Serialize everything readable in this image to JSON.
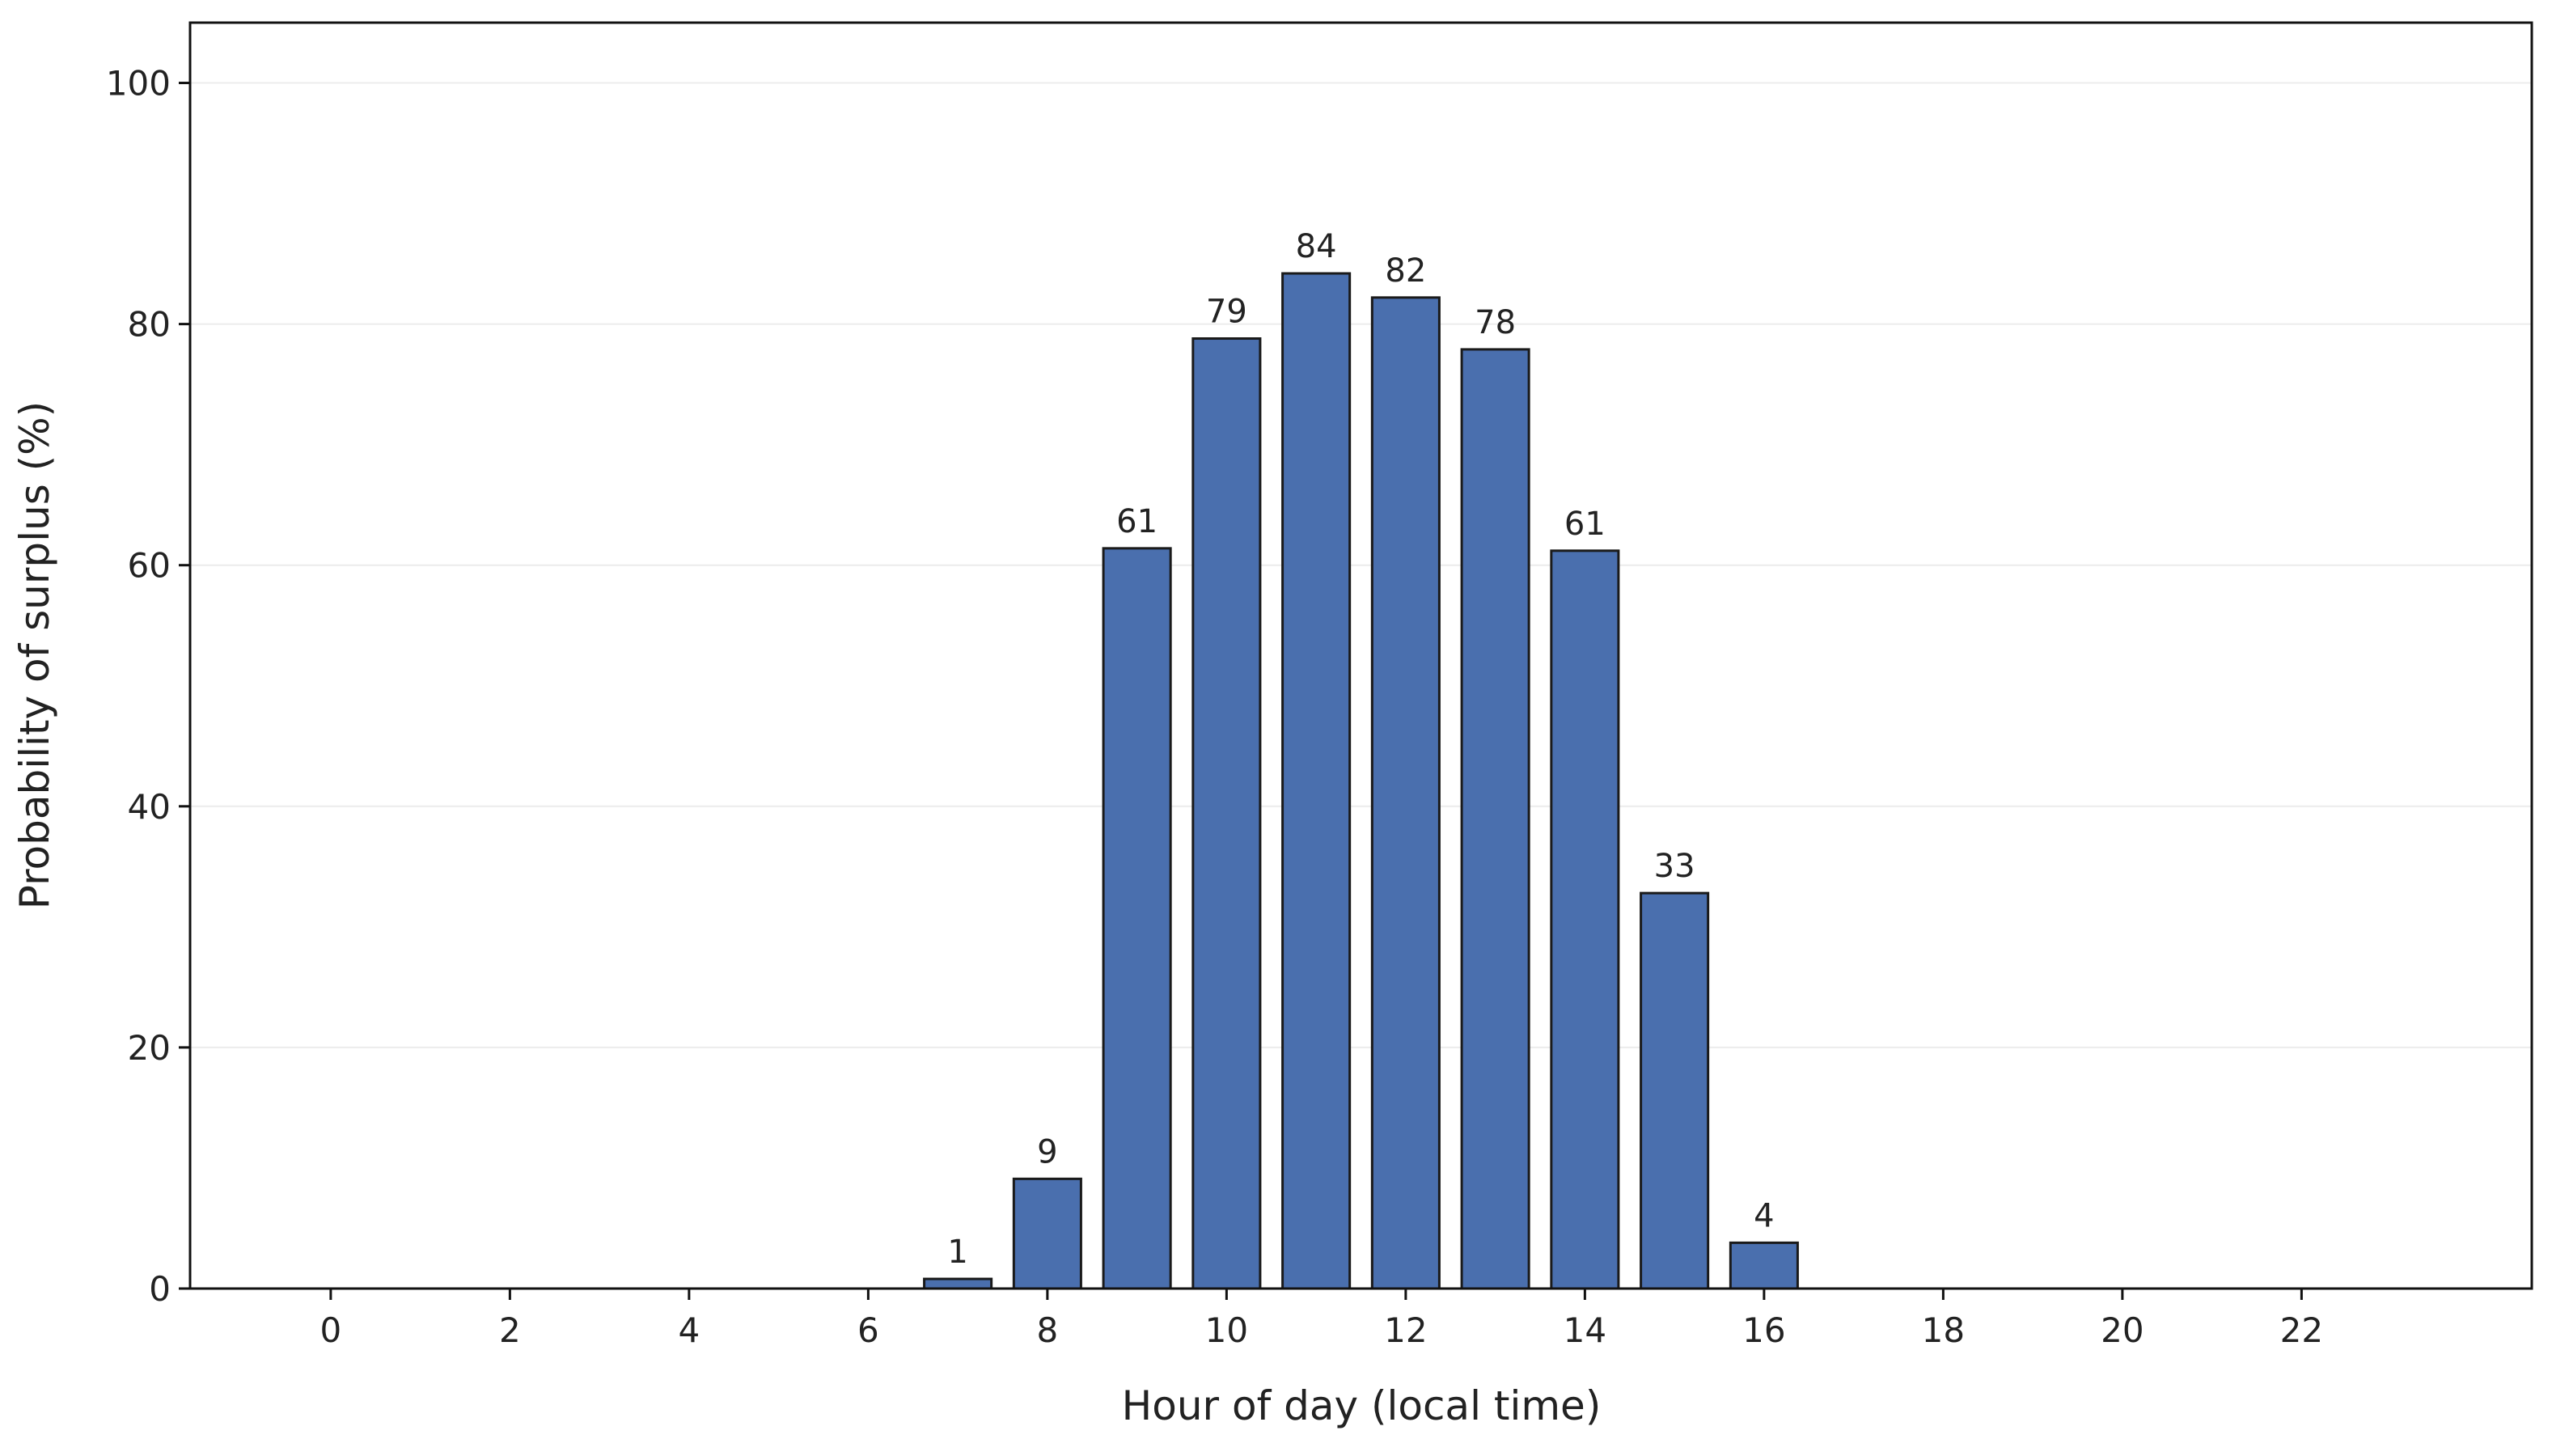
{
  "chart_data": {
    "type": "bar",
    "x_label": "Hour of day (local time)",
    "y_label": "Probability of surplus (%)",
    "x": [
      7,
      8,
      9,
      10,
      11,
      12,
      13,
      14,
      15,
      16
    ],
    "values": [
      0.8,
      9.1,
      61.4,
      78.8,
      84.2,
      82.2,
      77.9,
      61.2,
      32.8,
      3.8
    ],
    "value_labels": [
      "1",
      "9",
      "61",
      "79",
      "84",
      "82",
      "78",
      "61",
      "33",
      "4"
    ],
    "color": "#4a6fae",
    "edge_color": "#1a1a1a",
    "xlim": [
      -1.57,
      24.57
    ],
    "xticks": [
      0,
      2,
      4,
      6,
      8,
      10,
      12,
      14,
      16,
      18,
      20,
      22
    ],
    "ylim": [
      0,
      105
    ],
    "yticks": [
      0,
      20,
      40,
      60,
      80,
      100
    ],
    "grid": true
  }
}
